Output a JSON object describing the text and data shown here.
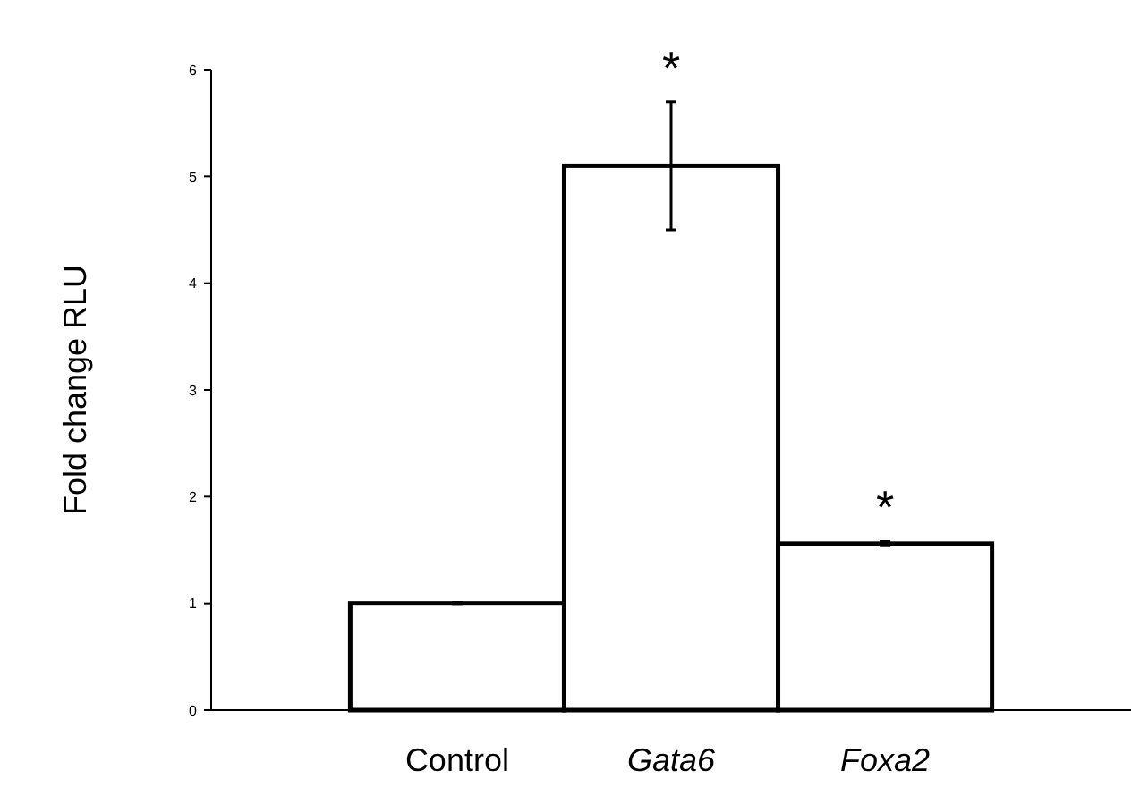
{
  "chart_data": {
    "type": "bar",
    "ylabel": "Fold change RLU",
    "categories": [
      "Control",
      "Gata6",
      "Foxa2"
    ],
    "values": [
      1,
      5.1,
      1.56
    ],
    "errors": [
      0.01,
      0.6,
      0.02
    ],
    "color": "#ffffff",
    "ylim": [
      0,
      6
    ],
    "yticks": [
      0,
      1,
      2,
      3,
      4,
      5,
      6
    ],
    "grid": false,
    "annotations": [
      {
        "text": "*",
        "x": "Gata6",
        "y": 5.7
      },
      {
        "text": "*",
        "x": "Foxa2",
        "y": 1.58
      }
    ]
  }
}
